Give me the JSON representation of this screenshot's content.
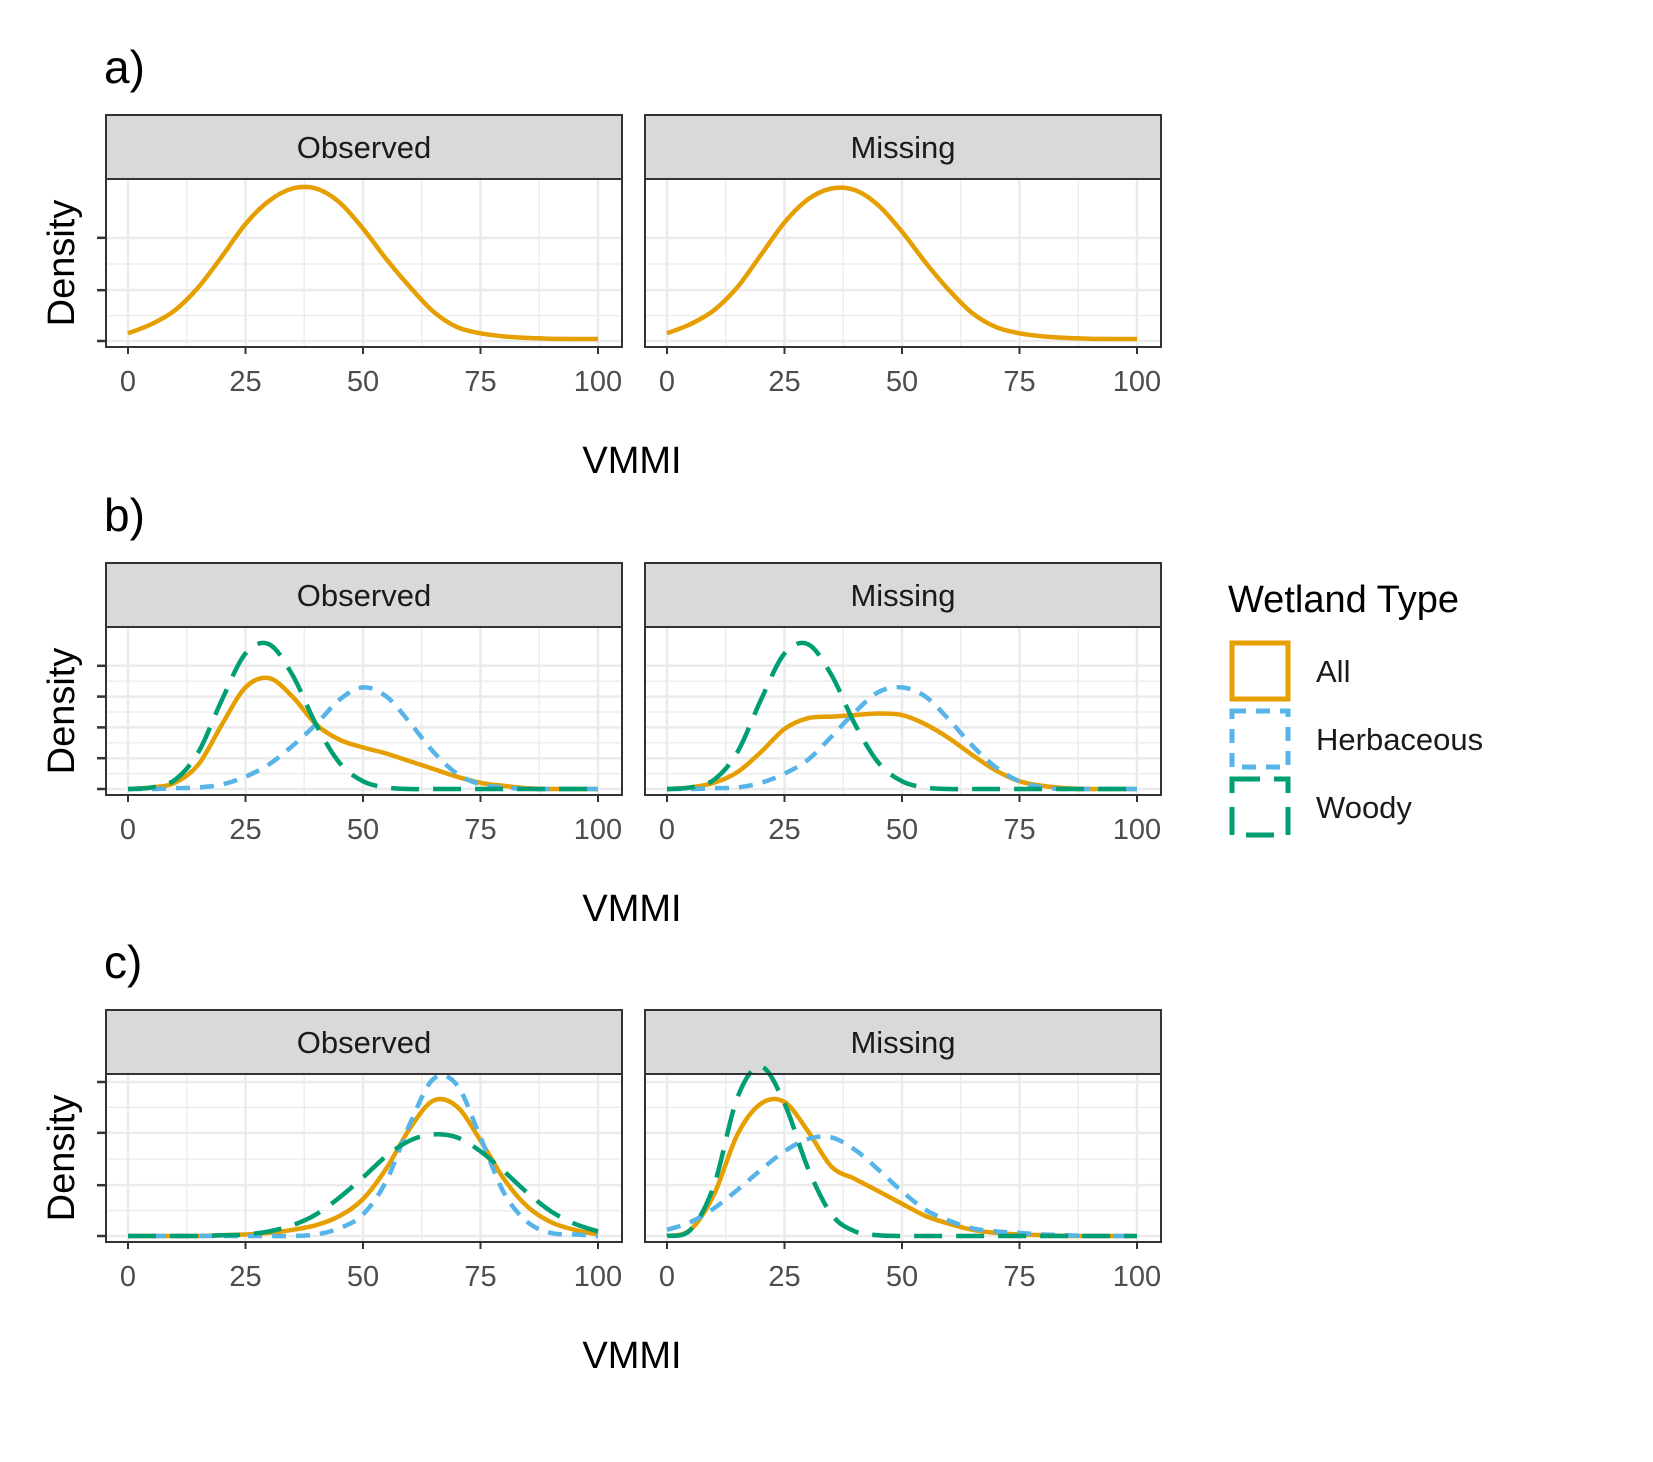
{
  "colors": {
    "All": "#E69F00",
    "Herbaceous": "#56B4E9",
    "Woody": "#009E73",
    "strip_bg": "#D9D9D9",
    "grid": "#EBEBEB",
    "border": "#333333"
  },
  "legend": {
    "title": "Wetland Type",
    "placement": "right",
    "items": [
      {
        "label": "All",
        "color": "#E69F00",
        "dash": "solid"
      },
      {
        "label": "Herbaceous",
        "color": "#56B4E9",
        "dash": "short-dash"
      },
      {
        "label": "Woody",
        "color": "#009E73",
        "dash": "long-dash"
      }
    ]
  },
  "chart_data": [
    {
      "type": "line",
      "panel_label": "a)",
      "xlabel": "VMMI",
      "ylabel": "Density",
      "xlim": [
        0,
        100
      ],
      "x_ticks": [
        "0",
        "25",
        "50",
        "75",
        "100"
      ],
      "ylim": [
        0,
        1.0
      ],
      "y_ticks": [
        0,
        0.33,
        0.67
      ],
      "grid": true,
      "facets": [
        {
          "name": "Observed",
          "series": [
            {
              "name": "All",
              "x": [
                0,
                5,
                10,
                15,
                20,
                25,
                30,
                35,
                40,
                45,
                50,
                55,
                60,
                65,
                70,
                75,
                80,
                85,
                90,
                95,
                100
              ],
              "y": [
                0.05,
                0.11,
                0.2,
                0.35,
                0.55,
                0.76,
                0.91,
                0.99,
                0.99,
                0.9,
                0.73,
                0.53,
                0.35,
                0.19,
                0.09,
                0.05,
                0.03,
                0.02,
                0.015,
                0.013,
                0.013
              ]
            }
          ]
        },
        {
          "name": "Missing",
          "series": [
            {
              "name": "All",
              "x": [
                0,
                5,
                10,
                15,
                20,
                25,
                30,
                35,
                40,
                45,
                50,
                55,
                60,
                65,
                70,
                75,
                80,
                85,
                90,
                95,
                100
              ],
              "y": [
                0.05,
                0.11,
                0.2,
                0.35,
                0.56,
                0.77,
                0.92,
                0.99,
                0.98,
                0.88,
                0.71,
                0.51,
                0.33,
                0.18,
                0.09,
                0.05,
                0.03,
                0.02,
                0.015,
                0.013,
                0.013
              ]
            }
          ]
        }
      ]
    },
    {
      "type": "line",
      "panel_label": "b)",
      "xlabel": "VMMI",
      "ylabel": "Density",
      "xlim": [
        0,
        100
      ],
      "x_ticks": [
        "0",
        "25",
        "50",
        "75",
        "100"
      ],
      "ylim": [
        0,
        1.0
      ],
      "y_ticks": [
        0,
        0.2,
        0.4,
        0.6,
        0.8
      ],
      "grid": true,
      "facets": [
        {
          "name": "Observed",
          "series": [
            {
              "name": "All",
              "x": [
                0,
                5,
                10,
                15,
                20,
                25,
                30,
                35,
                40,
                45,
                50,
                55,
                60,
                65,
                70,
                75,
                80,
                85,
                90,
                95,
                100
              ],
              "y": [
                0.0,
                0.01,
                0.04,
                0.16,
                0.42,
                0.66,
                0.72,
                0.6,
                0.42,
                0.32,
                0.27,
                0.23,
                0.18,
                0.13,
                0.08,
                0.04,
                0.02,
                0.005,
                0.0,
                0.0,
                0.0
              ]
            },
            {
              "name": "Herbaceous",
              "x": [
                0,
                5,
                10,
                15,
                20,
                25,
                30,
                35,
                40,
                45,
                50,
                55,
                60,
                65,
                70,
                75,
                80,
                85,
                90,
                95,
                100
              ],
              "y": [
                0.0,
                0.0,
                0.005,
                0.01,
                0.03,
                0.08,
                0.16,
                0.28,
                0.42,
                0.58,
                0.66,
                0.6,
                0.43,
                0.24,
                0.1,
                0.03,
                0.01,
                0.0,
                0.0,
                0.0,
                0.0
              ]
            },
            {
              "name": "Woody",
              "x": [
                0,
                5,
                10,
                15,
                20,
                25,
                30,
                35,
                40,
                45,
                50,
                55,
                60,
                65,
                70,
                75,
                80,
                85,
                90,
                95,
                100
              ],
              "y": [
                0.0,
                0.01,
                0.06,
                0.24,
                0.58,
                0.88,
                0.94,
                0.74,
                0.42,
                0.17,
                0.05,
                0.01,
                0.0,
                0.0,
                0.0,
                0.0,
                0.0,
                0.0,
                0.0,
                0.0,
                0.0
              ]
            }
          ]
        },
        {
          "name": "Missing",
          "series": [
            {
              "name": "All",
              "x": [
                0,
                5,
                10,
                15,
                20,
                25,
                30,
                35,
                40,
                45,
                50,
                55,
                60,
                65,
                70,
                75,
                80,
                85,
                90,
                95,
                100
              ],
              "y": [
                0.0,
                0.01,
                0.04,
                0.11,
                0.24,
                0.39,
                0.46,
                0.47,
                0.48,
                0.49,
                0.48,
                0.42,
                0.33,
                0.22,
                0.12,
                0.05,
                0.02,
                0.005,
                0.0,
                0.0,
                0.0
              ]
            },
            {
              "name": "Herbaceous",
              "x": [
                0,
                5,
                10,
                15,
                20,
                25,
                30,
                35,
                40,
                45,
                50,
                55,
                60,
                65,
                70,
                75,
                80,
                85,
                90,
                95,
                100
              ],
              "y": [
                0.0,
                0.0,
                0.005,
                0.01,
                0.04,
                0.1,
                0.19,
                0.34,
                0.5,
                0.63,
                0.66,
                0.6,
                0.45,
                0.28,
                0.14,
                0.05,
                0.01,
                0.0,
                0.0,
                0.0,
                0.0
              ]
            },
            {
              "name": "Woody",
              "x": [
                0,
                5,
                10,
                15,
                20,
                25,
                30,
                35,
                40,
                45,
                50,
                55,
                60,
                65,
                70,
                75,
                80,
                85,
                90,
                95,
                100
              ],
              "y": [
                0.0,
                0.01,
                0.06,
                0.24,
                0.58,
                0.88,
                0.94,
                0.74,
                0.42,
                0.17,
                0.05,
                0.01,
                0.0,
                0.0,
                0.0,
                0.0,
                0.0,
                0.0,
                0.0,
                0.0,
                0.0
              ]
            }
          ]
        }
      ]
    },
    {
      "type": "line",
      "panel_label": "c)",
      "xlabel": "VMMI",
      "ylabel": "Density",
      "xlim": [
        0,
        100
      ],
      "x_ticks": [
        "0",
        "25",
        "50",
        "75",
        "100"
      ],
      "ylim": [
        0,
        1.0
      ],
      "y_ticks": [
        0,
        0.33,
        0.67,
        1.0
      ],
      "grid": true,
      "facets": [
        {
          "name": "Observed",
          "series": [
            {
              "name": "All",
              "x": [
                0,
                5,
                10,
                15,
                20,
                25,
                30,
                35,
                40,
                45,
                50,
                55,
                60,
                65,
                70,
                75,
                80,
                85,
                90,
                95,
                100
              ],
              "y": [
                0.0,
                0.0,
                0.0,
                0.0,
                0.005,
                0.01,
                0.02,
                0.04,
                0.07,
                0.13,
                0.24,
                0.44,
                0.7,
                0.88,
                0.84,
                0.62,
                0.37,
                0.19,
                0.09,
                0.04,
                0.01
              ]
            },
            {
              "name": "Herbaceous",
              "x": [
                0,
                5,
                10,
                15,
                20,
                25,
                30,
                35,
                40,
                45,
                50,
                55,
                60,
                65,
                70,
                75,
                80,
                85,
                90,
                95,
                100
              ],
              "y": [
                0.0,
                0.0,
                0.0,
                0.0,
                0.0,
                0.0,
                0.0,
                0.0,
                0.01,
                0.05,
                0.14,
                0.36,
                0.73,
                1.02,
                0.98,
                0.64,
                0.28,
                0.09,
                0.02,
                0.01,
                0.0
              ]
            },
            {
              "name": "Woody",
              "x": [
                0,
                5,
                10,
                15,
                20,
                25,
                30,
                35,
                40,
                45,
                50,
                55,
                60,
                65,
                70,
                75,
                80,
                85,
                90,
                95,
                100
              ],
              "y": [
                0.0,
                0.0,
                0.0,
                0.0,
                0.005,
                0.01,
                0.03,
                0.07,
                0.14,
                0.25,
                0.38,
                0.52,
                0.62,
                0.66,
                0.64,
                0.55,
                0.42,
                0.28,
                0.16,
                0.08,
                0.03
              ]
            }
          ]
        },
        {
          "name": "Missing",
          "series": [
            {
              "name": "All",
              "x": [
                0,
                5,
                10,
                15,
                20,
                25,
                30,
                35,
                40,
                45,
                50,
                55,
                60,
                65,
                70,
                75,
                80,
                85,
                90,
                95,
                100
              ],
              "y": [
                0.0,
                0.04,
                0.27,
                0.66,
                0.86,
                0.87,
                0.68,
                0.45,
                0.37,
                0.29,
                0.21,
                0.13,
                0.08,
                0.04,
                0.02,
                0.01,
                0.005,
                0.0,
                0.0,
                0.0,
                0.0
              ]
            },
            {
              "name": "Herbaceous",
              "x": [
                0,
                5,
                10,
                15,
                20,
                25,
                30,
                35,
                40,
                45,
                50,
                55,
                60,
                65,
                70,
                75,
                80,
                85,
                90,
                95,
                100
              ],
              "y": [
                0.04,
                0.09,
                0.18,
                0.3,
                0.43,
                0.55,
                0.63,
                0.64,
                0.56,
                0.43,
                0.29,
                0.17,
                0.1,
                0.05,
                0.03,
                0.02,
                0.01,
                0.005,
                0.0,
                0.0,
                0.0
              ]
            },
            {
              "name": "Woody",
              "x": [
                0,
                5,
                10,
                15,
                20,
                25,
                30,
                35,
                40,
                45,
                50,
                55,
                60,
                65,
                70,
                75,
                80,
                85,
                90,
                95,
                100
              ],
              "y": [
                0.0,
                0.04,
                0.33,
                0.9,
                1.1,
                0.86,
                0.44,
                0.14,
                0.03,
                0.005,
                0.0,
                0.0,
                0.0,
                0.0,
                0.0,
                0.0,
                0.0,
                0.0,
                0.0,
                0.0,
                0.0
              ]
            }
          ]
        }
      ]
    }
  ]
}
